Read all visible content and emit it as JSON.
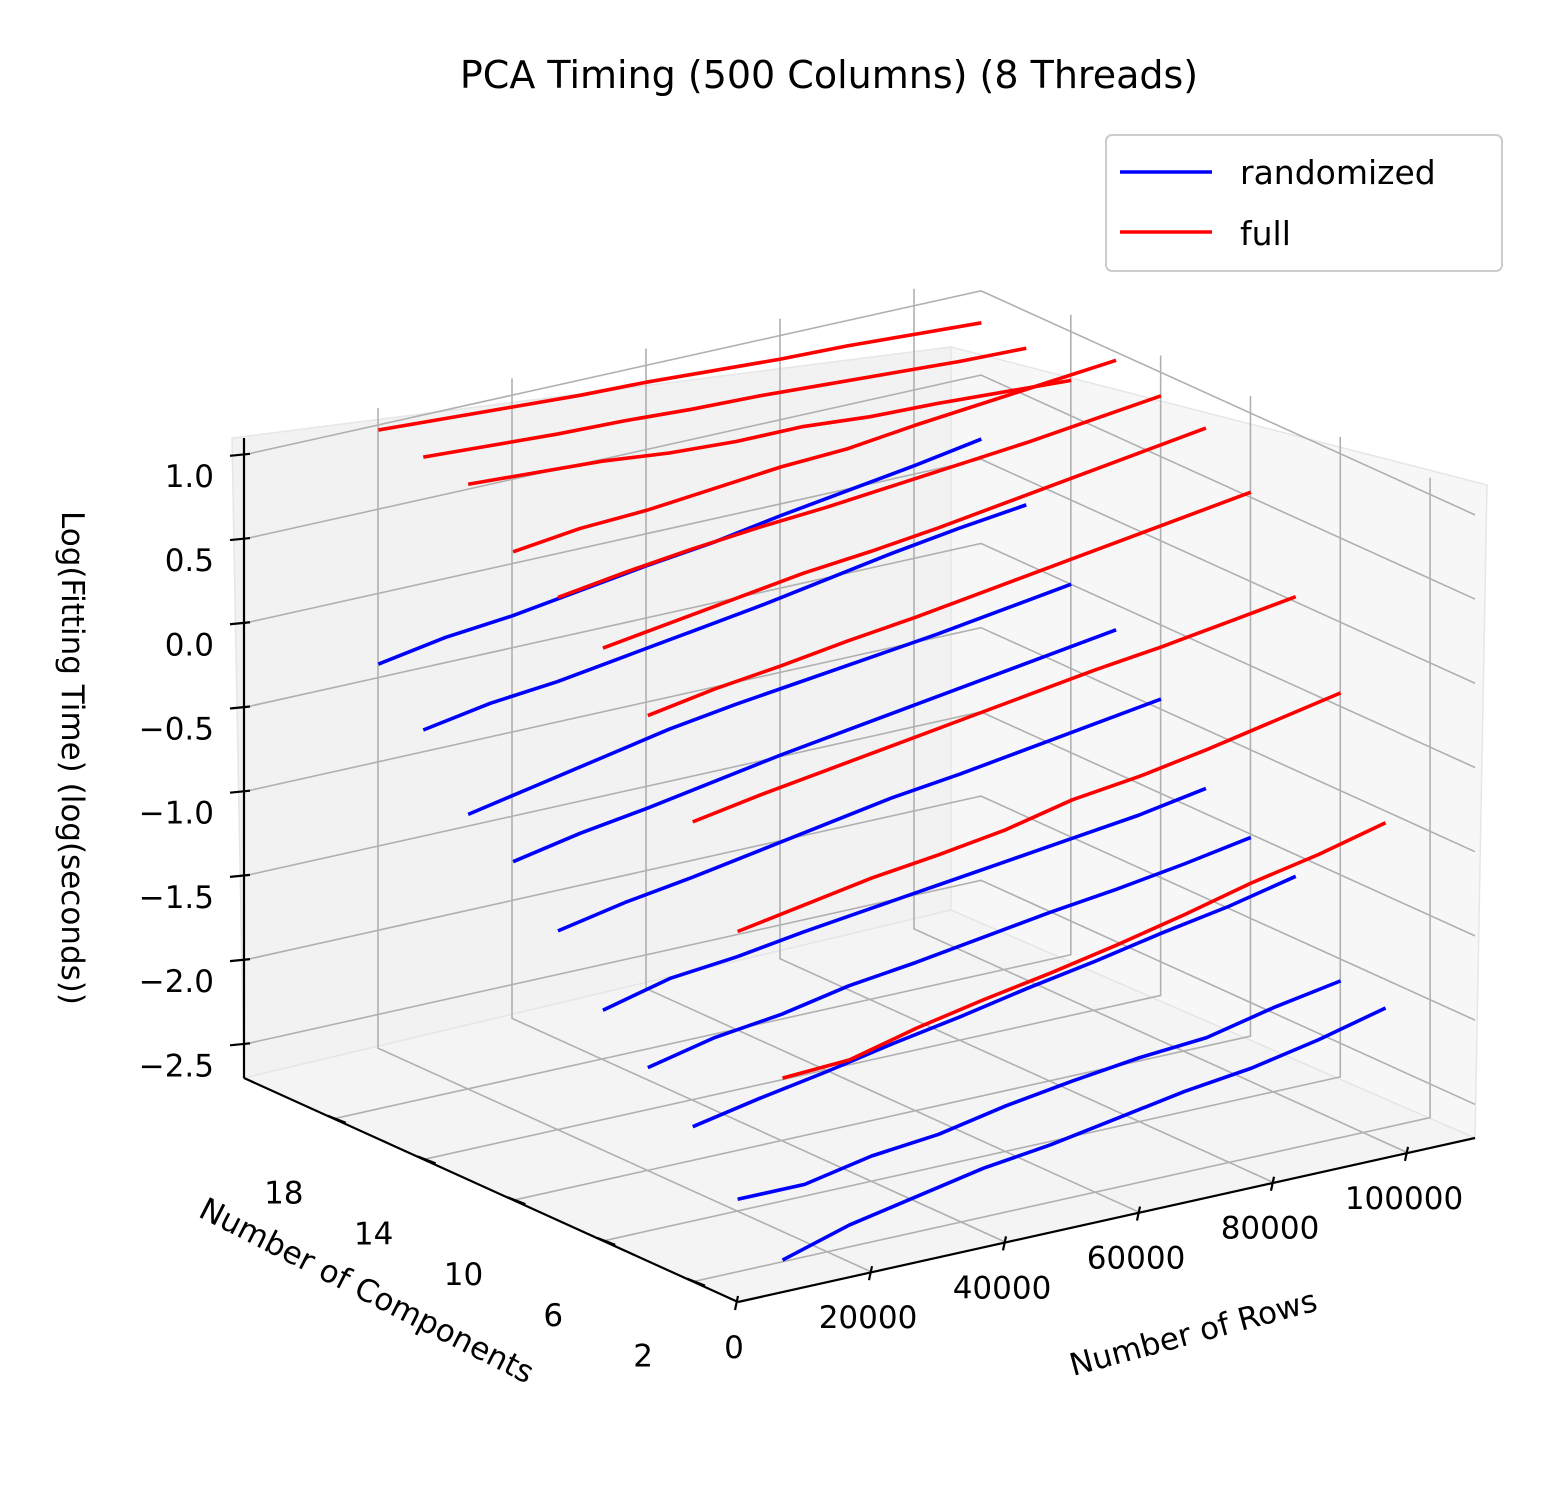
{
  "chart_data": {
    "type": "line",
    "title": "PCA Timing (500 Columns) (8 Threads)",
    "xlabel": "Number of Rows",
    "ylabel": "Number of Components",
    "zlabel": "Log(Fitting Time) (log(seconds))",
    "x_ticks": [
      "0",
      "20000",
      "40000",
      "60000",
      "80000",
      "100000"
    ],
    "y_ticks": [
      "18",
      "14",
      "10",
      "6",
      "2"
    ],
    "z_ticks": [
      "1.0",
      "0.5",
      "0.0",
      "−0.5",
      "−1.0",
      "−1.5",
      "−2.0",
      "−2.5"
    ],
    "xlim": [
      0,
      110000
    ],
    "ylim": [
      0,
      22
    ],
    "zlim": [
      -2.7,
      1.1
    ],
    "grid": true,
    "legend_position": "top-right",
    "series": [
      {
        "name": "randomized",
        "color": "#0000ff",
        "components": [
          1,
          3,
          5,
          7,
          9,
          11,
          13,
          15,
          17,
          19
        ],
        "x": [
          10000,
          20000,
          30000,
          40000,
          50000,
          60000,
          70000,
          80000,
          90000,
          100000
        ],
        "z": [
          [
            -2.6,
            -2.48,
            -2.4,
            -2.32,
            -2.27,
            -2.2,
            -2.13,
            -2.08,
            -2.0,
            -1.9
          ],
          [
            -2.36,
            -2.36,
            -2.28,
            -2.24,
            -2.16,
            -2.1,
            -2.05,
            -2.02,
            -1.93,
            -1.86
          ],
          [
            -2.05,
            -1.97,
            -1.9,
            -1.82,
            -1.75,
            -1.67,
            -1.6,
            -1.52,
            -1.45,
            -1.36
          ],
          [
            -1.82,
            -1.73,
            -1.68,
            -1.6,
            -1.55,
            -1.49,
            -1.43,
            -1.38,
            -1.32,
            -1.25
          ],
          [
            -1.6,
            -1.5,
            -1.46,
            -1.4,
            -1.35,
            -1.3,
            -1.25,
            -1.2,
            -1.15,
            -1.08
          ],
          [
            -1.25,
            -1.17,
            -1.11,
            -1.04,
            -0.97,
            -0.9,
            -0.85,
            -0.79,
            -0.73,
            -0.67
          ],
          [
            -0.96,
            -0.88,
            -0.82,
            -0.75,
            -0.68,
            -0.62,
            -0.56,
            -0.5,
            -0.44,
            -0.38
          ],
          [
            -0.8,
            -0.72,
            -0.64,
            -0.56,
            -0.5,
            -0.45,
            -0.4,
            -0.35,
            -0.29,
            -0.23
          ],
          [
            -0.42,
            -0.35,
            -0.31,
            -0.25,
            -0.19,
            -0.13,
            -0.06,
            0.01,
            0.07,
            0.12
          ],
          [
            -0.15,
            -0.08,
            -0.04,
            0.02,
            0.08,
            0.13,
            0.2,
            0.26,
            0.32,
            0.39
          ]
        ]
      },
      {
        "name": "full",
        "color": "#ff0000",
        "components": [
          1,
          3,
          5,
          7,
          9,
          11,
          13,
          15,
          17,
          19
        ],
        "x": [
          10000,
          20000,
          30000,
          40000,
          50000,
          60000,
          70000,
          80000,
          90000,
          100000
        ],
        "z": [
          [
            -1.52,
            -1.5,
            -1.4,
            -1.32,
            -1.25,
            -1.17,
            -1.08,
            -0.98,
            -0.9,
            -0.8
          ],
          [
            -0.77,
            -0.7,
            -0.63,
            -0.58,
            -0.52,
            -0.43,
            -0.38,
            -0.31,
            -0.23,
            -0.15
          ],
          [
            -0.24,
            -0.17,
            -0.11,
            -0.05,
            0.01,
            0.07,
            0.13,
            0.18,
            0.24,
            0.3
          ],
          [
            0.27,
            0.34,
            0.39,
            0.45,
            0.5,
            0.56,
            0.62,
            0.68,
            0.74,
            0.8
          ],
          [
            0.55,
            0.61,
            0.67,
            0.73,
            0.77,
            0.82,
            0.88,
            0.94,
            1.0,
            1.06
          ],
          [
            0.73,
            0.79,
            0.84,
            0.88,
            0.91,
            0.95,
            0.99,
            1.03,
            1.08,
            1.13
          ],
          [
            0.88,
            0.93,
            0.95,
            0.99,
            1.03,
            1.05,
            1.1,
            1.14,
            1.18,
            1.22
          ],
          [
            1.16,
            1.14,
            1.12,
            1.08,
            1.06,
            1.06,
            1.03,
            1.02,
            1.0,
            0.98
          ],
          [
            1.2,
            1.18,
            1.16,
            1.15,
            1.13,
            1.12,
            1.1,
            1.08,
            1.06,
            1.05
          ],
          [
            1.24,
            1.22,
            1.2,
            1.18,
            1.17,
            1.15,
            1.13,
            1.12,
            1.1,
            1.08
          ]
        ]
      }
    ]
  }
}
